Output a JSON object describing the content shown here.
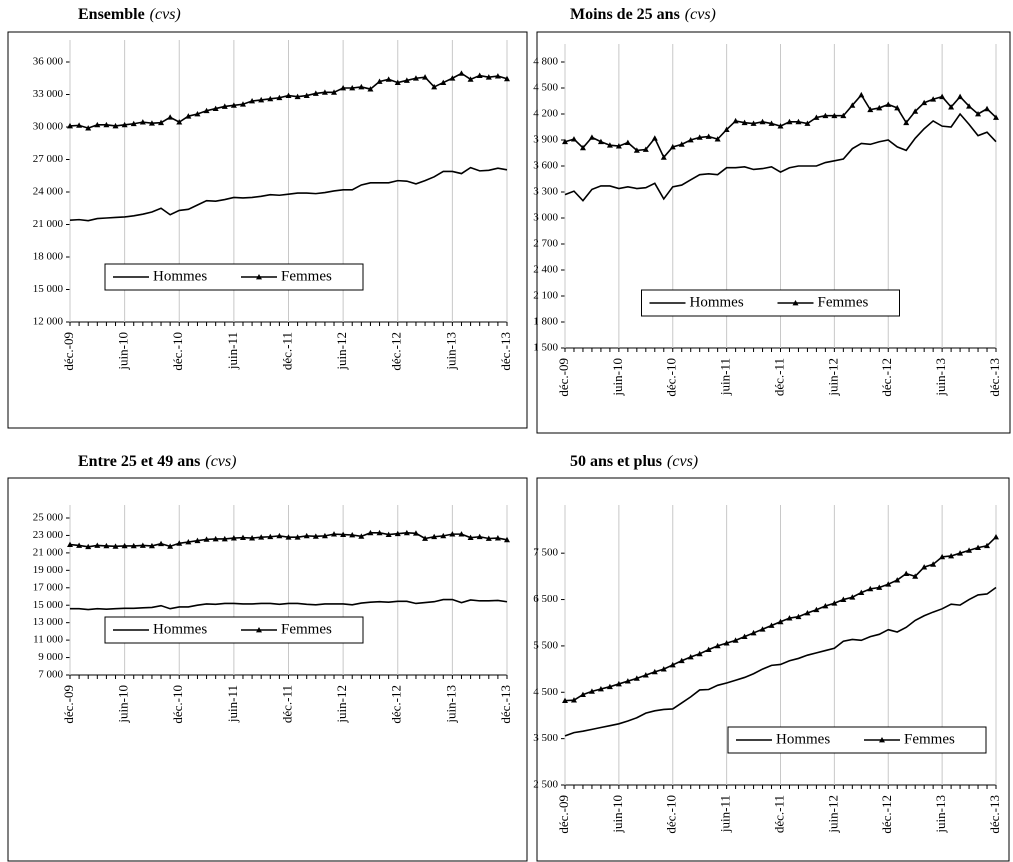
{
  "chart_data": [
    {
      "type": "line",
      "title": "Ensemble",
      "subtitle": "(cvs)",
      "categories": [
        "déc.-09",
        null,
        null,
        null,
        null,
        null,
        "juin-10",
        null,
        null,
        null,
        null,
        null,
        "déc.-10",
        null,
        null,
        null,
        null,
        null,
        "juin-11",
        null,
        null,
        null,
        null,
        null,
        "déc.-11",
        null,
        null,
        null,
        null,
        null,
        "juin-12",
        null,
        null,
        null,
        null,
        null,
        "déc.-12",
        null,
        null,
        null,
        null,
        null,
        "juin-13",
        null,
        null,
        null,
        null,
        null,
        "déc.-13"
      ],
      "series": [
        {
          "name": "Hommes",
          "color": "#000000",
          "marker": "none",
          "values": [
            21400,
            21450,
            21350,
            21550,
            21600,
            21650,
            21700,
            21800,
            21950,
            22150,
            22500,
            21900,
            22300,
            22400,
            22800,
            23200,
            23150,
            23300,
            23500,
            23450,
            23500,
            23600,
            23750,
            23700,
            23800,
            23900,
            23900,
            23850,
            23950,
            24100,
            24200,
            24200,
            24650,
            24850,
            24850,
            24850,
            25050,
            25000,
            24750,
            25050,
            25400,
            25900,
            25900,
            25700,
            26250,
            25950,
            26000,
            26200,
            26050
          ]
        },
        {
          "name": "Femmes",
          "color": "#000000",
          "marker": "triangle",
          "values": [
            30100,
            30150,
            29900,
            30200,
            30200,
            30100,
            30200,
            30300,
            30450,
            30350,
            30400,
            30900,
            30450,
            31000,
            31200,
            31500,
            31700,
            31900,
            32000,
            32100,
            32400,
            32500,
            32600,
            32700,
            32900,
            32800,
            32900,
            33100,
            33200,
            33200,
            33600,
            33600,
            33700,
            33500,
            34200,
            34400,
            34100,
            34300,
            34500,
            34600,
            33700,
            34100,
            34500,
            34950,
            34400,
            34750,
            34600,
            34700,
            34450
          ]
        }
      ],
      "ylim": [
        12000,
        36000
      ],
      "yticks": [
        {
          "value": 12000,
          "label": "12 000"
        },
        {
          "value": 15000,
          "label": "15 000"
        },
        {
          "value": 18000,
          "label": "18 000"
        },
        {
          "value": 21000,
          "label": "21 000"
        },
        {
          "value": 24000,
          "label": "24 000"
        },
        {
          "value": 27000,
          "label": "27 000"
        },
        {
          "value": 30000,
          "label": "30 000"
        },
        {
          "value": 33000,
          "label": "33 000"
        },
        {
          "value": 36000,
          "label": "36 000"
        }
      ],
      "grid": "vertical",
      "legend": "lower left"
    },
    {
      "type": "line",
      "title": "Moins de 25 ans",
      "subtitle": "(cvs)",
      "categories": [
        "déc.-09",
        null,
        null,
        null,
        null,
        null,
        "juin-10",
        null,
        null,
        null,
        null,
        null,
        "déc.-10",
        null,
        null,
        null,
        null,
        null,
        "juin-11",
        null,
        null,
        null,
        null,
        null,
        "déc.-11",
        null,
        null,
        null,
        null,
        null,
        "juin-12",
        null,
        null,
        null,
        null,
        null,
        "déc.-12",
        null,
        null,
        null,
        null,
        null,
        "juin-13",
        null,
        null,
        null,
        null,
        null,
        "déc.-13"
      ],
      "series": [
        {
          "name": "Hommes",
          "color": "#000000",
          "marker": "none",
          "values": [
            3270,
            3310,
            3200,
            3330,
            3370,
            3370,
            3340,
            3360,
            3340,
            3350,
            3400,
            3220,
            3360,
            3380,
            3440,
            3500,
            3510,
            3500,
            3580,
            3580,
            3590,
            3560,
            3570,
            3590,
            3530,
            3580,
            3600,
            3600,
            3600,
            3640,
            3660,
            3680,
            3800,
            3860,
            3850,
            3880,
            3900,
            3820,
            3780,
            3920,
            4030,
            4120,
            4060,
            4050,
            4200,
            4080,
            3950,
            3990,
            3880
          ]
        },
        {
          "name": "Femmes",
          "color": "#000000",
          "marker": "triangle",
          "values": [
            3880,
            3910,
            3810,
            3930,
            3880,
            3840,
            3830,
            3870,
            3780,
            3790,
            3920,
            3700,
            3820,
            3850,
            3900,
            3930,
            3940,
            3910,
            4020,
            4120,
            4100,
            4090,
            4110,
            4090,
            4060,
            4110,
            4110,
            4090,
            4160,
            4180,
            4180,
            4180,
            4300,
            4420,
            4250,
            4270,
            4310,
            4270,
            4100,
            4230,
            4330,
            4370,
            4400,
            4280,
            4400,
            4290,
            4200,
            4260,
            4160
          ]
        }
      ],
      "ylim": [
        1500,
        4800
      ],
      "yticks": [
        {
          "value": 1500,
          "label": "1 500"
        },
        {
          "value": 1800,
          "label": "1 800"
        },
        {
          "value": 2100,
          "label": "2 100"
        },
        {
          "value": 2400,
          "label": "2 400"
        },
        {
          "value": 2700,
          "label": "2 700"
        },
        {
          "value": 3000,
          "label": "3 000"
        },
        {
          "value": 3300,
          "label": "3 300"
        },
        {
          "value": 3600,
          "label": "3 600"
        },
        {
          "value": 3900,
          "label": "3 900"
        },
        {
          "value": 4200,
          "label": "4 200"
        },
        {
          "value": 4500,
          "label": "4 500"
        },
        {
          "value": 4800,
          "label": "4 800"
        }
      ],
      "grid": "vertical",
      "legend": "lower center"
    },
    {
      "type": "line",
      "title": "Entre 25 et 49 ans",
      "subtitle": "(cvs)",
      "categories": [
        "déc.-09",
        null,
        null,
        null,
        null,
        null,
        "juin-10",
        null,
        null,
        null,
        null,
        null,
        "déc.-10",
        null,
        null,
        null,
        null,
        null,
        "juin-11",
        null,
        null,
        null,
        null,
        null,
        "déc.-11",
        null,
        null,
        null,
        null,
        null,
        "juin-12",
        null,
        null,
        null,
        null,
        null,
        "déc.-12",
        null,
        null,
        null,
        null,
        null,
        "juin-13",
        null,
        null,
        null,
        null,
        null,
        "déc.-13"
      ],
      "series": [
        {
          "name": "Hommes",
          "color": "#000000",
          "marker": "none",
          "values": [
            14600,
            14600,
            14500,
            14600,
            14550,
            14600,
            14650,
            14650,
            14700,
            14750,
            14950,
            14600,
            14800,
            14800,
            15000,
            15150,
            15100,
            15200,
            15200,
            15150,
            15150,
            15200,
            15200,
            15100,
            15200,
            15200,
            15100,
            15050,
            15150,
            15150,
            15150,
            15050,
            15250,
            15350,
            15400,
            15350,
            15450,
            15450,
            15200,
            15300,
            15400,
            15650,
            15650,
            15300,
            15600,
            15500,
            15500,
            15550,
            15400
          ]
        },
        {
          "name": "Femmes",
          "color": "#000000",
          "marker": "triangle",
          "values": [
            21950,
            21850,
            21700,
            21850,
            21800,
            21750,
            21800,
            21800,
            21850,
            21800,
            22050,
            21750,
            22100,
            22250,
            22400,
            22550,
            22600,
            22600,
            22700,
            22750,
            22700,
            22800,
            22850,
            22950,
            22800,
            22800,
            22950,
            22900,
            22950,
            23150,
            23100,
            23050,
            22900,
            23300,
            23300,
            23100,
            23200,
            23300,
            23250,
            22650,
            22850,
            22950,
            23150,
            23150,
            22750,
            22850,
            22650,
            22700,
            22500
          ]
        }
      ],
      "ylim": [
        7000,
        25000
      ],
      "yticks": [
        {
          "value": 7000,
          "label": "7 000"
        },
        {
          "value": 9000,
          "label": "9 000"
        },
        {
          "value": 11000,
          "label": "11 000"
        },
        {
          "value": 13000,
          "label": "13 000"
        },
        {
          "value": 15000,
          "label": "15 000"
        },
        {
          "value": 17000,
          "label": "17 000"
        },
        {
          "value": 19000,
          "label": "19 000"
        },
        {
          "value": 21000,
          "label": "21 000"
        },
        {
          "value": 23000,
          "label": "23 000"
        },
        {
          "value": 25000,
          "label": "25 000"
        }
      ],
      "grid": "vertical",
      "legend": "lower left"
    },
    {
      "type": "line",
      "title": "50 ans et plus",
      "subtitle": "(cvs)",
      "categories": [
        "déc.-09",
        null,
        null,
        null,
        null,
        null,
        "juin-10",
        null,
        null,
        null,
        null,
        null,
        "déc.-10",
        null,
        null,
        null,
        null,
        null,
        "juin-11",
        null,
        null,
        null,
        null,
        null,
        "déc.-11",
        null,
        null,
        null,
        null,
        null,
        "juin-12",
        null,
        null,
        null,
        null,
        null,
        "déc.-12",
        null,
        null,
        null,
        null,
        null,
        "juin-13",
        null,
        null,
        null,
        null,
        null,
        "déc.-13"
      ],
      "series": [
        {
          "name": "Hommes",
          "color": "#000000",
          "marker": "none",
          "values": [
            3560,
            3630,
            3660,
            3700,
            3740,
            3780,
            3820,
            3880,
            3950,
            4050,
            4100,
            4130,
            4140,
            4270,
            4400,
            4550,
            4560,
            4650,
            4700,
            4760,
            4820,
            4900,
            5000,
            5080,
            5100,
            5180,
            5230,
            5300,
            5350,
            5400,
            5450,
            5600,
            5640,
            5620,
            5700,
            5750,
            5850,
            5800,
            5900,
            6050,
            6150,
            6230,
            6300,
            6400,
            6380,
            6500,
            6600,
            6620,
            6760
          ]
        },
        {
          "name": "Femmes",
          "color": "#000000",
          "marker": "triangle",
          "values": [
            4320,
            4330,
            4450,
            4520,
            4570,
            4620,
            4680,
            4740,
            4800,
            4870,
            4940,
            5000,
            5090,
            5180,
            5260,
            5330,
            5420,
            5500,
            5560,
            5620,
            5700,
            5780,
            5860,
            5940,
            6020,
            6100,
            6130,
            6210,
            6280,
            6360,
            6420,
            6500,
            6550,
            6650,
            6730,
            6760,
            6830,
            6920,
            7060,
            7000,
            7200,
            7260,
            7420,
            7440,
            7500,
            7560,
            7620,
            7660,
            7850
          ]
        }
      ],
      "ylim": [
        2500,
        8000
      ],
      "yticks": [
        {
          "value": 2500,
          "label": "2 500"
        },
        {
          "value": 3500,
          "label": "3 500"
        },
        {
          "value": 4500,
          "label": "4 500"
        },
        {
          "value": 5500,
          "label": "5 500"
        },
        {
          "value": 6500,
          "label": "6 500"
        },
        {
          "value": 7500,
          "label": "7 500"
        }
      ],
      "grid": "vertical",
      "legend": "lower right"
    }
  ]
}
